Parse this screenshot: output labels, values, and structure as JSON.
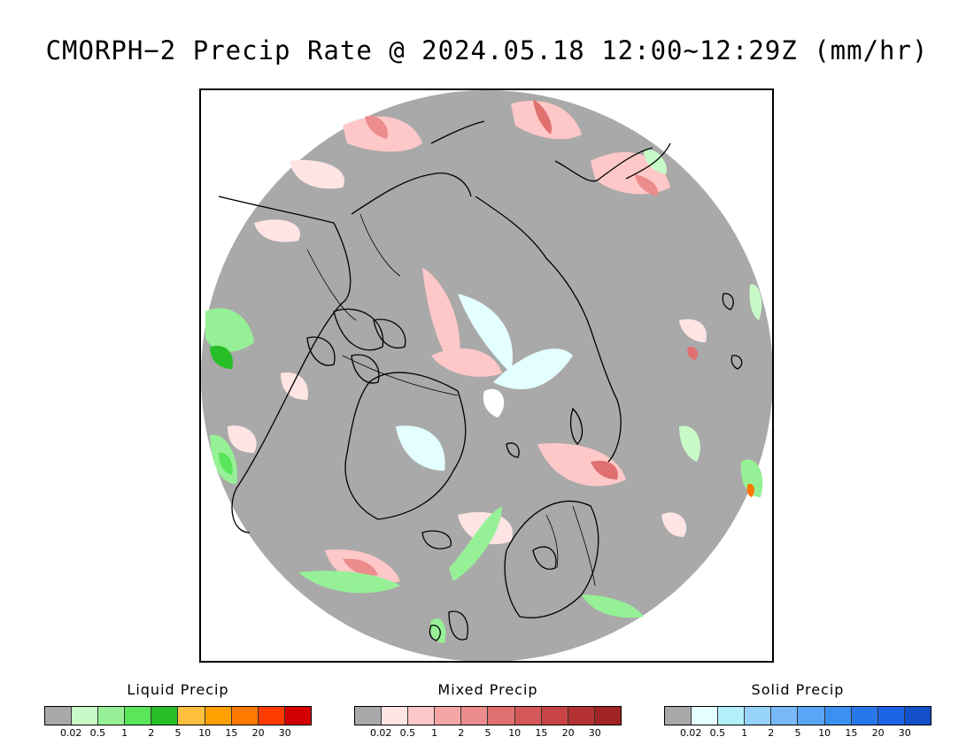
{
  "title": "CMORPH−2 Precip Rate @ 2024.05.18 12:00~12:29Z (mm/hr)",
  "map": {
    "projection": "north polar stereographic",
    "no_precip_color": "#a9a9a9",
    "coastline_color": "#000000"
  },
  "legends": [
    {
      "title": "Liquid Precip",
      "colors": [
        "#a9a9a9",
        "#c8fac8",
        "#96f096",
        "#5ae65a",
        "#28be28",
        "#ffc040",
        "#ffa000",
        "#ff7800",
        "#ff3c00",
        "#d20000"
      ],
      "ticks": [
        "0.02",
        "0.5",
        "1",
        "2",
        "5",
        "10",
        "15",
        "20",
        "30"
      ]
    },
    {
      "title": "Mixed Precip",
      "colors": [
        "#a9a9a9",
        "#ffe4e4",
        "#ffc8c8",
        "#f4a6a6",
        "#ec8c8c",
        "#e07070",
        "#d45858",
        "#c84444",
        "#b43232",
        "#a02424"
      ],
      "ticks": [
        "0.02",
        "0.5",
        "1",
        "2",
        "5",
        "10",
        "15",
        "20",
        "30"
      ]
    },
    {
      "title": "Solid Precip",
      "colors": [
        "#a9a9a9",
        "#e4ffff",
        "#b4f0fa",
        "#96d2fa",
        "#78b9fa",
        "#5aa5f5",
        "#3c91f0",
        "#2878eb",
        "#1e64e6",
        "#1450c8"
      ],
      "ticks": [
        "0.02",
        "0.5",
        "1",
        "2",
        "5",
        "10",
        "15",
        "20",
        "30"
      ]
    }
  ]
}
